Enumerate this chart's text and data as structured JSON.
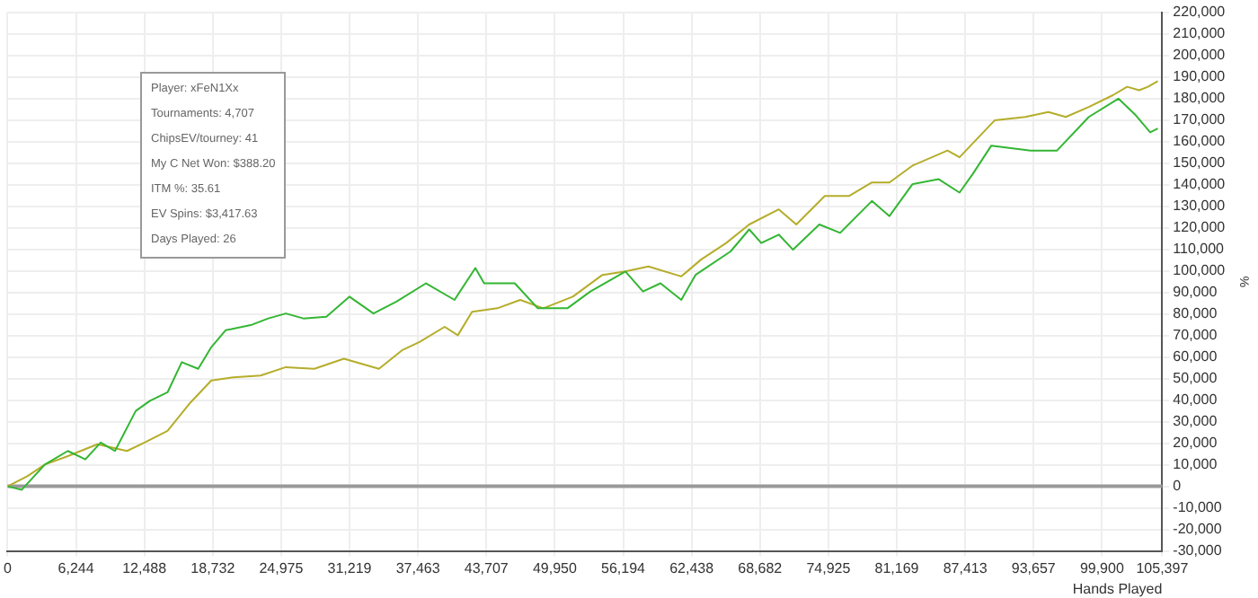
{
  "chart_data": {
    "type": "line",
    "xlabel": "Hands Played",
    "ylabel": "%",
    "annotations": [
      "Player: xFeN1Xx",
      "Tournaments: 4,707",
      "ChipsEV/tourney: 41",
      "My C Net Won: $388.20",
      "ITM %: 35.61",
      "EV Spins: $3,417.63",
      "Days Played: 26"
    ],
    "xlim": [
      0,
      105397
    ],
    "xticks": [
      0,
      {
        "value": 6244,
        "label": "6,244"
      },
      {
        "value": 12488,
        "label": "12,488"
      },
      {
        "value": 18732,
        "label": "18,732"
      },
      {
        "value": 24975,
        "label": "24,975"
      },
      {
        "value": 31219,
        "label": "31,219"
      },
      {
        "value": 37463,
        "label": "37,463"
      },
      {
        "value": 43707,
        "label": "43,707"
      },
      {
        "value": 49950,
        "label": "49,950"
      },
      {
        "value": 56194,
        "label": "56,194"
      },
      {
        "value": 62438,
        "label": "62,438"
      },
      {
        "value": 68682,
        "label": "68,682"
      },
      {
        "value": 74925,
        "label": "74,925"
      },
      {
        "value": 81169,
        "label": "81,169"
      },
      {
        "value": 87413,
        "label": "87,413"
      },
      {
        "value": 93657,
        "label": "93,657"
      },
      {
        "value": 99900,
        "label": "99,900"
      },
      {
        "value": 105397,
        "label": "105,397"
      }
    ],
    "ylim": [
      -30000,
      220000
    ],
    "yticks": [
      {
        "value": -30000,
        "label": "-30,000"
      },
      {
        "value": -20000,
        "label": "-20,000"
      },
      {
        "value": -10000,
        "label": "-10,000"
      },
      0,
      {
        "value": 10000,
        "label": "10,000"
      },
      {
        "value": 20000,
        "label": "20,000"
      },
      {
        "value": 30000,
        "label": "30,000"
      },
      {
        "value": 40000,
        "label": "40,000"
      },
      {
        "value": 50000,
        "label": "50,000"
      },
      {
        "value": 60000,
        "label": "60,000"
      },
      {
        "value": 70000,
        "label": "70,000"
      },
      {
        "value": 80000,
        "label": "80,000"
      },
      {
        "value": 90000,
        "label": "90,000"
      },
      {
        "value": 100000,
        "label": "100,000"
      },
      {
        "value": 110000,
        "label": "110,000"
      },
      {
        "value": 120000,
        "label": "120,000"
      },
      {
        "value": 130000,
        "label": "130,000"
      },
      {
        "value": 140000,
        "label": "140,000"
      },
      {
        "value": 150000,
        "label": "150,000"
      },
      {
        "value": 160000,
        "label": "160,000"
      },
      {
        "value": 170000,
        "label": "170,000"
      },
      {
        "value": 180000,
        "label": "180,000"
      },
      {
        "value": 190000,
        "label": "190,000"
      },
      {
        "value": 200000,
        "label": "200,000"
      },
      {
        "value": 210000,
        "label": "210,000"
      },
      {
        "value": 220000,
        "label": "220,000"
      }
    ],
    "grid": true,
    "legend": false,
    "marker": "none",
    "line_style": "solid",
    "ref_lines": [
      {
        "axis": "y",
        "value": 0,
        "color": "#999999"
      }
    ],
    "series": [
      {
        "color": "#33b633",
        "x": [
          0,
          1300,
          3400,
          5500,
          7100,
          8500,
          9800,
          11700,
          13000,
          14600,
          15900,
          17400,
          18600,
          19900,
          22200,
          23800,
          25400,
          27000,
          29100,
          31200,
          33400,
          35500,
          38200,
          40800,
          42700,
          43500,
          46300,
          48400,
          51100,
          53200,
          56400,
          58000,
          59600,
          61500,
          62800,
          66000,
          67700,
          68800,
          70400,
          71700,
          74100,
          76000,
          78900,
          80500,
          82600,
          85000,
          86900,
          88100,
          89800,
          93400,
          95800,
          98700,
          101400,
          103000,
          104300,
          105000
        ],
        "values": [
          0,
          -1600,
          10100,
          16400,
          12500,
          20300,
          16400,
          35000,
          39700,
          43600,
          57600,
          54500,
          64600,
          72400,
          74800,
          77900,
          80200,
          77900,
          78700,
          88000,
          80200,
          85700,
          94200,
          86500,
          101300,
          94200,
          94200,
          82600,
          82600,
          90400,
          99700,
          90400,
          94200,
          86500,
          98100,
          109000,
          119200,
          112900,
          116800,
          109800,
          121500,
          117600,
          132400,
          125400,
          140200,
          142500,
          136300,
          144900,
          158100,
          155800,
          155800,
          171400,
          179900,
          172100,
          164300,
          166000
        ]
      },
      {
        "color": "#b5ad2a",
        "x": [
          0,
          1800,
          3400,
          5500,
          8200,
          10900,
          12500,
          14600,
          16700,
          18600,
          20600,
          23100,
          25400,
          28000,
          30700,
          33900,
          36000,
          37600,
          39900,
          41100,
          42400,
          44700,
          46800,
          48900,
          51600,
          54300,
          56400,
          58500,
          61500,
          63300,
          65600,
          67700,
          70400,
          72000,
          74600,
          76800,
          78900,
          80500,
          82600,
          85800,
          86900,
          90100,
          92900,
          95000,
          96600,
          98700,
          100900,
          102200,
          103300,
          104100,
          105000
        ],
        "values": [
          0,
          4700,
          10100,
          14000,
          19500,
          16400,
          20300,
          25700,
          38900,
          49100,
          50600,
          51400,
          55300,
          54500,
          59200,
          54500,
          63100,
          67000,
          74000,
          70100,
          81000,
          82600,
          86500,
          82600,
          88000,
          98100,
          99700,
          102000,
          97400,
          105200,
          112900,
          121500,
          128500,
          121500,
          134700,
          134700,
          141000,
          141000,
          148800,
          155800,
          152700,
          169800,
          171400,
          173700,
          171400,
          176000,
          181500,
          185400,
          183800,
          185400,
          188000
        ]
      }
    ]
  }
}
